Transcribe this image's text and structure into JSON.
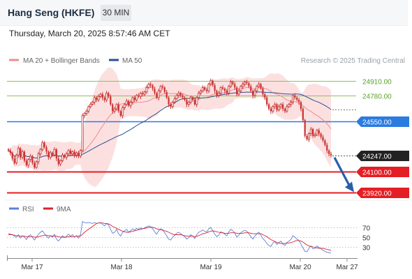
{
  "header": {
    "title": "Hang Seng (HKFE)",
    "interval": "30 MIN",
    "datetime": "Thursday, March 20, 2025 8:57:46 AM CET"
  },
  "legend": {
    "ma20_label": "MA 20 + Bollinger Bands",
    "ma50_label": "MA 50",
    "credit": "Research © 2025 Trading Central",
    "rsi_label": "RSI",
    "rsi_ma_label": "9MA"
  },
  "colors": {
    "ma20": "#f08c8c",
    "ma50": "#2a4f8f",
    "bollinger_fill": "#fbd5d5",
    "candle": "#c83232",
    "green_level": "#8cc05a",
    "blue_level": "#2b7be0",
    "red_level": "#e31e24",
    "last_price": "#222222",
    "arrow": "#2a5ea8",
    "rsi": "#5b7fdb",
    "rsi_ma": "#d9232e"
  },
  "chart_data": [
    {
      "type": "candlestick",
      "title": "Hang Seng (HKFE)",
      "x_labels": [
        "Mar 17",
        "Mar 18",
        "Mar 19",
        "Mar 20",
        "Mar 27"
      ],
      "ylim": [
        23880,
        25020
      ],
      "close_series": [
        24290,
        24270,
        24220,
        24180,
        24250,
        24310,
        24230,
        24280,
        24200,
        24160,
        24210,
        24240,
        24180,
        24140,
        24190,
        24260,
        24300,
        24360,
        24320,
        24280,
        24230,
        24270,
        24250,
        24300,
        24220,
        24170,
        24200,
        24250,
        24230,
        24260,
        24290,
        24260,
        24280,
        24250,
        24270,
        24240,
        24290,
        24600,
        24620,
        24640,
        24680,
        24700,
        24720,
        24760,
        24740,
        24770,
        24790,
        24760,
        24740,
        24800,
        24770,
        24700,
        24640,
        24660,
        24700,
        24640,
        24600,
        24670,
        24700,
        24730,
        24690,
        24720,
        24760,
        24740,
        24780,
        24770,
        24800,
        24790,
        24810,
        24850,
        24880,
        24870,
        24840,
        24800,
        24760,
        24820,
        24860,
        24850,
        24810,
        24760,
        24700,
        24680,
        24720,
        24750,
        24780,
        24800,
        24780,
        24760,
        24740,
        24700,
        24720,
        24760,
        24740,
        24700,
        24760,
        24800,
        24820,
        24850,
        24830,
        24820,
        24880,
        24910,
        24870,
        24820,
        24780,
        24800,
        24850,
        24840,
        24820,
        24800,
        24860,
        24900,
        24880,
        24850,
        24790,
        24820,
        24860,
        24880,
        24900,
        24890,
        24860,
        24820,
        24780,
        24820,
        24860,
        24880,
        24840,
        24790,
        24760,
        24700,
        24660,
        24640,
        24680,
        24700,
        24650,
        24680,
        24700,
        24660,
        24640,
        24680,
        24700,
        24720,
        24780,
        24760,
        24740,
        24720,
        24660,
        24560,
        24420,
        24390,
        24440,
        24480,
        24420,
        24430,
        24470,
        24440,
        24410,
        24380,
        24340,
        24290,
        24260,
        24247
      ],
      "levels": [
        {
          "value": 24910.0,
          "label": "24910.00",
          "kind": "resistance"
        },
        {
          "value": 24780.0,
          "label": "24780.00",
          "kind": "resistance"
        },
        {
          "value": 24550.0,
          "label": "24550.00",
          "kind": "pivot"
        },
        {
          "value": 24247.0,
          "label": "24247.00",
          "kind": "last"
        },
        {
          "value": 24100.0,
          "label": "24100.00",
          "kind": "support"
        },
        {
          "value": 23920.0,
          "label": "23920.00",
          "kind": "support"
        }
      ],
      "projection": {
        "from": 24247,
        "to": 23920,
        "direction": "down"
      }
    },
    {
      "type": "line",
      "title": "RSI",
      "series": [
        {
          "name": "RSI",
          "values": [
            58,
            56,
            55,
            52,
            50,
            55,
            48,
            53,
            50,
            45,
            52,
            55,
            50,
            44,
            50,
            56,
            60,
            63,
            57,
            52,
            48,
            53,
            50,
            56,
            46,
            42,
            47,
            53,
            49,
            52,
            56,
            52,
            55,
            50,
            53,
            48,
            55,
            82,
            80,
            79,
            80,
            79,
            78,
            80,
            78,
            79,
            80,
            76,
            73,
            78,
            75,
            66,
            58,
            60,
            66,
            57,
            52,
            60,
            63,
            66,
            60,
            63,
            67,
            64,
            68,
            66,
            69,
            67,
            69,
            71,
            73,
            72,
            67,
            61,
            56,
            63,
            67,
            65,
            59,
            53,
            46,
            44,
            50,
            54,
            58,
            60,
            57,
            54,
            51,
            46,
            49,
            55,
            52,
            47,
            55,
            60,
            62,
            65,
            62,
            61,
            67,
            70,
            63,
            56,
            51,
            54,
            61,
            59,
            56,
            53,
            61,
            66,
            63,
            58,
            50,
            54,
            59,
            62,
            64,
            62,
            57,
            51,
            46,
            52,
            57,
            60,
            54,
            47,
            43,
            37,
            33,
            31,
            38,
            41,
            35,
            39,
            42,
            36,
            33,
            39,
            42,
            45,
            53,
            50,
            46,
            43,
            36,
            28,
            21,
            20,
            27,
            32,
            26,
            27,
            32,
            29,
            26,
            23,
            21,
            19,
            18,
            18
          ]
        },
        {
          "name": "9MA",
          "values": [
            55,
            55,
            55,
            54,
            53,
            53,
            52,
            52,
            52,
            51,
            51,
            51,
            51,
            50,
            50,
            51,
            52,
            53,
            54,
            54,
            53,
            53,
            52,
            52,
            52,
            51,
            50,
            50,
            50,
            50,
            51,
            51,
            51,
            51,
            52,
            52,
            52,
            56,
            60,
            63,
            66,
            69,
            72,
            75,
            78,
            79,
            79,
            79,
            78,
            78,
            77,
            75,
            72,
            70,
            68,
            66,
            64,
            62,
            61,
            60,
            60,
            61,
            62,
            63,
            64,
            65,
            66,
            67,
            68,
            69,
            70,
            70,
            70,
            69,
            67,
            66,
            65,
            64,
            63,
            62,
            60,
            58,
            56,
            55,
            55,
            55,
            55,
            54,
            53,
            52,
            52,
            52,
            52,
            51,
            52,
            53,
            55,
            57,
            58,
            59,
            61,
            62,
            63,
            62,
            61,
            60,
            59,
            59,
            58,
            58,
            58,
            59,
            59,
            59,
            58,
            58,
            58,
            58,
            59,
            59,
            59,
            58,
            57,
            57,
            57,
            57,
            57,
            55,
            53,
            51,
            48,
            45,
            43,
            41,
            39,
            38,
            37,
            37,
            37,
            38,
            38,
            39,
            40,
            42,
            43,
            43,
            42,
            40,
            37,
            34,
            32,
            31,
            30,
            29,
            28,
            27,
            27,
            27,
            26,
            25,
            24,
            23
          ]
        }
      ],
      "levels": [
        {
          "value": 70,
          "label": "70"
        },
        {
          "value": 50,
          "label": "50"
        },
        {
          "value": 30,
          "label": "30"
        }
      ],
      "ylim": [
        10,
        90
      ]
    }
  ]
}
